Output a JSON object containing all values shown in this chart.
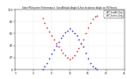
{
  "title": "Solar PV/Inverter Performance  Sun Altitude Angle & Sun Incidence Angle on PV Panels",
  "legend_labels": [
    "HOT_SunAlt_Deg",
    "HOT_SunInc_Deg"
  ],
  "legend_colors": [
    "#0000cc",
    "#cc0000"
  ],
  "ylim": [
    0,
    100
  ],
  "xlim": [
    0,
    24
  ],
  "ylabel_ticks": [
    0,
    20,
    40,
    60,
    80,
    100
  ],
  "sun_alt_x": [
    6.0,
    6.5,
    7.0,
    7.5,
    8.0,
    8.5,
    9.0,
    9.5,
    10.0,
    10.5,
    11.0,
    11.5,
    12.0,
    12.5,
    13.0,
    13.5,
    14.0,
    14.5,
    15.0,
    15.5,
    16.0,
    16.5,
    17.0,
    17.5,
    18.0
  ],
  "sun_alt_y": [
    0,
    5,
    10,
    18,
    26,
    33,
    40,
    46,
    52,
    57,
    62,
    65,
    68,
    65,
    61,
    56,
    50,
    44,
    38,
    28,
    18,
    11,
    5,
    2,
    0
  ],
  "sun_inc_x": [
    6.0,
    6.5,
    7.0,
    7.5,
    8.0,
    8.5,
    9.0,
    9.5,
    10.0,
    10.5,
    11.0,
    11.5,
    12.0,
    12.5,
    13.0,
    13.5,
    14.0,
    14.5,
    15.0,
    15.5,
    16.0,
    16.5,
    17.0,
    17.5,
    18.0
  ],
  "sun_inc_y": [
    85,
    78,
    70,
    63,
    56,
    50,
    44,
    38,
    33,
    28,
    24,
    20,
    17,
    20,
    24,
    30,
    36,
    43,
    50,
    60,
    70,
    78,
    84,
    88,
    90
  ],
  "bg_color": "#ffffff",
  "grid_color": "#aaaaaa",
  "alt_color": "#0000cc",
  "inc_color": "#cc0000",
  "dot_size": 1.5
}
